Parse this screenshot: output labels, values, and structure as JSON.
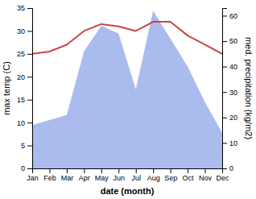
{
  "chart_data": {
    "type": "line",
    "categories": [
      "Jan",
      "Feb",
      "Mar",
      "Apr",
      "May",
      "Jun",
      "Jul",
      "Aug",
      "Sep",
      "Oct",
      "Nov",
      "Dec"
    ],
    "xlabel": "date (month)",
    "ylabel": "max temp (C)",
    "y2label": "med. precipitation (kg/m2)",
    "ylim": [
      0,
      35
    ],
    "yticks": [
      0,
      5,
      10,
      15,
      20,
      25,
      30,
      35
    ],
    "y2lim": [
      0,
      63
    ],
    "y2ticks": [
      0,
      10,
      20,
      30,
      40,
      50,
      60
    ],
    "series": [
      {
        "type": "area",
        "axis": "y2",
        "color": "#aabbee",
        "values": [
          17,
          19,
          21,
          46,
          56,
          53,
          31,
          62,
          51,
          40,
          26,
          14
        ]
      },
      {
        "type": "line",
        "color": "#cc4444",
        "values": [
          25.0,
          25.5,
          27.0,
          30.0,
          31.5,
          31.0,
          30.0,
          32.0,
          32.0,
          29.0,
          27.0,
          25.0
        ]
      }
    ]
  }
}
